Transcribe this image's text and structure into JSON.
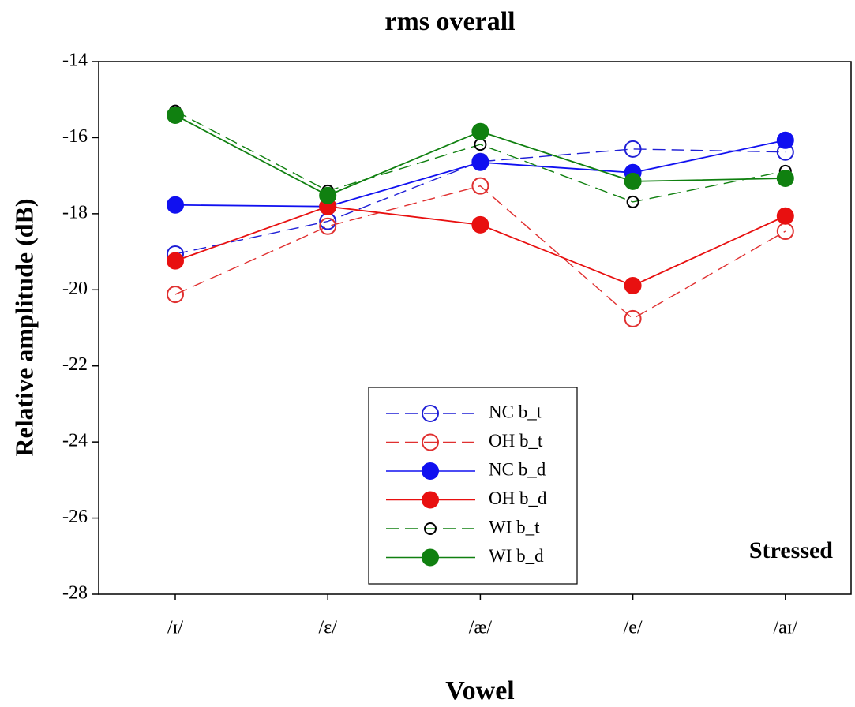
{
  "chart_data": {
    "type": "line",
    "title": "rms overall",
    "x_label": "Vowel",
    "y_label": "Relative amplitude (dB)",
    "annotation": "Stressed",
    "categories": [
      "/ɪ/",
      "/ɛ/",
      "/æ/",
      "/e/",
      "/aɪ/"
    ],
    "ylim": [
      -28,
      -14
    ],
    "yticks": [
      -28,
      -26,
      -24,
      -22,
      -20,
      -18,
      -16,
      -14
    ],
    "legend": "bottom-center",
    "series": [
      {
        "name": "NC b_t",
        "color": "#1f1fd6",
        "line_style": "dashed",
        "marker": "open",
        "marker_color": "#1f1fd6",
        "values": [
          -19.06,
          -18.2,
          -16.63,
          -16.3,
          -16.38
        ]
      },
      {
        "name": "OH b_t",
        "color": "#e03030",
        "line_style": "dashed",
        "marker": "open",
        "marker_color": "#e03030",
        "values": [
          -20.12,
          -18.33,
          -17.27,
          -20.76,
          -18.46
        ]
      },
      {
        "name": "NC b_d",
        "color": "#1010f0",
        "line_style": "solid",
        "marker": "filled",
        "marker_color": "#1010f0",
        "values": [
          -17.77,
          -17.81,
          -16.65,
          -16.92,
          -16.07
        ]
      },
      {
        "name": "OH b_d",
        "color": "#e81010",
        "line_style": "solid",
        "marker": "filled",
        "marker_color": "#e81010",
        "values": [
          -19.24,
          -17.81,
          -18.29,
          -19.89,
          -18.06
        ]
      },
      {
        "name": "WI b_t",
        "color": "#108010",
        "line_style": "dashed",
        "marker": "open",
        "marker_color": "#000000",
        "values": [
          -15.3,
          -17.4,
          -16.18,
          -17.69,
          -16.88
        ]
      },
      {
        "name": "WI b_d",
        "color": "#108010",
        "line_style": "solid",
        "marker": "filled",
        "marker_color": "#108010",
        "values": [
          -15.41,
          -17.52,
          -15.84,
          -17.15,
          -17.07
        ]
      }
    ]
  }
}
